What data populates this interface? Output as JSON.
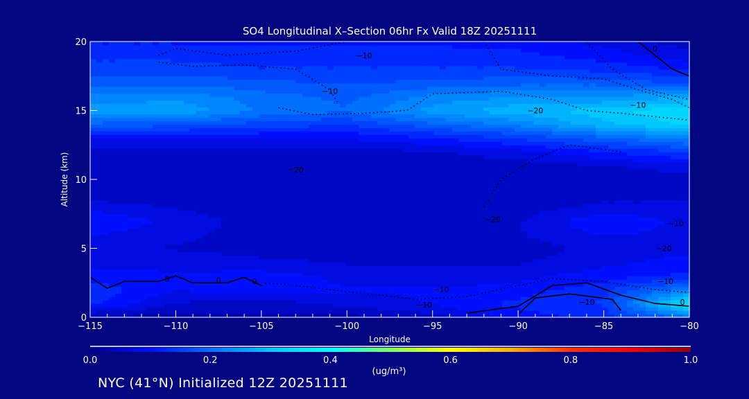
{
  "chart_data": {
    "type": "heatmap",
    "title": "SO4 Longitudinal X–Section 06hr  Fx Valid 18Z 20251111",
    "xlabel": "Longitude",
    "ylabel": "Altitude (km)",
    "xlim": [
      -115,
      -80
    ],
    "ylim": [
      0,
      20
    ],
    "xticks": [
      -115,
      -110,
      -105,
      -100,
      -95,
      -90,
      -85,
      -80
    ],
    "xtick_labels": [
      "−115",
      "−110",
      "−105",
      "−100",
      "−95",
      "−90",
      "−85",
      "−80"
    ],
    "yticks": [
      0,
      5,
      10,
      15,
      20
    ],
    "ytick_labels": [
      "0",
      "5",
      "10",
      "15",
      "20"
    ],
    "grid": false,
    "lon": [
      -115,
      -110,
      -105,
      -100,
      -95,
      -90,
      -85,
      -80
    ],
    "alt": [
      0,
      1,
      2,
      3,
      4,
      5,
      6,
      7,
      8,
      9,
      10,
      11,
      12,
      13,
      14,
      15,
      16,
      17,
      18,
      19,
      20
    ],
    "values": [
      [
        0.03,
        0.03,
        0.03,
        0.03,
        0.05,
        0.1,
        0.12,
        0.2
      ],
      [
        0.12,
        0.06,
        0.05,
        0.07,
        0.09,
        0.12,
        0.14,
        0.35
      ],
      [
        0.13,
        0.09,
        0.1,
        0.09,
        0.09,
        0.1,
        0.13,
        0.22
      ],
      [
        0.1,
        0.09,
        0.1,
        0.08,
        0.07,
        0.08,
        0.1,
        0.12
      ],
      [
        0.08,
        0.08,
        0.07,
        0.06,
        0.06,
        0.06,
        0.08,
        0.1
      ],
      [
        0.07,
        0.06,
        0.05,
        0.05,
        0.05,
        0.05,
        0.07,
        0.08
      ],
      [
        0.09,
        0.07,
        0.05,
        0.05,
        0.05,
        0.06,
        0.09,
        0.08
      ],
      [
        0.11,
        0.08,
        0.05,
        0.04,
        0.05,
        0.06,
        0.11,
        0.08
      ],
      [
        0.08,
        0.06,
        0.04,
        0.04,
        0.04,
        0.05,
        0.07,
        0.07
      ],
      [
        0.04,
        0.04,
        0.04,
        0.04,
        0.04,
        0.04,
        0.05,
        0.05
      ],
      [
        0.04,
        0.04,
        0.04,
        0.04,
        0.04,
        0.04,
        0.04,
        0.05
      ],
      [
        0.04,
        0.04,
        0.04,
        0.04,
        0.04,
        0.05,
        0.06,
        0.08
      ],
      [
        0.05,
        0.05,
        0.05,
        0.05,
        0.06,
        0.08,
        0.11,
        0.14
      ],
      [
        0.09,
        0.09,
        0.09,
        0.09,
        0.11,
        0.14,
        0.18,
        0.22
      ],
      [
        0.18,
        0.17,
        0.15,
        0.14,
        0.18,
        0.22,
        0.28,
        0.32
      ],
      [
        0.25,
        0.26,
        0.21,
        0.19,
        0.25,
        0.28,
        0.3,
        0.34
      ],
      [
        0.22,
        0.23,
        0.2,
        0.18,
        0.22,
        0.24,
        0.24,
        0.26
      ],
      [
        0.18,
        0.18,
        0.17,
        0.16,
        0.17,
        0.18,
        0.18,
        0.16
      ],
      [
        0.15,
        0.15,
        0.14,
        0.14,
        0.14,
        0.14,
        0.13,
        0.11
      ],
      [
        0.13,
        0.13,
        0.12,
        0.12,
        0.12,
        0.12,
        0.1,
        0.07
      ],
      [
        0.11,
        0.11,
        0.11,
        0.11,
        0.11,
        0.1,
        0.08,
        0.05
      ]
    ],
    "colorbar": {
      "label": "(ug/m³)",
      "ticks": [
        "0.0",
        "0.2",
        "0.4",
        "0.6",
        "0.8",
        "1.0"
      ],
      "range": [
        0,
        1
      ],
      "stops": [
        {
          "v": 0.0,
          "c": "#000088"
        },
        {
          "v": 0.1,
          "c": "#0010ff"
        },
        {
          "v": 0.2,
          "c": "#0070ff"
        },
        {
          "v": 0.3,
          "c": "#00c8ff"
        },
        {
          "v": 0.4,
          "c": "#00ffff"
        },
        {
          "v": 0.5,
          "c": "#80ff60"
        },
        {
          "v": 0.6,
          "c": "#ffff00"
        },
        {
          "v": 0.7,
          "c": "#ffb000"
        },
        {
          "v": 0.8,
          "c": "#ff3000"
        },
        {
          "v": 0.9,
          "c": "#ff0000"
        },
        {
          "v": 1.0,
          "c": "#900000"
        }
      ]
    },
    "contours": [
      {
        "style": "dotted",
        "points": [
          [
            -111,
            19
          ],
          [
            -110,
            19.5
          ],
          [
            -107,
            19
          ],
          [
            -103,
            19.3
          ],
          [
            -100,
            20
          ]
        ]
      },
      {
        "style": "dotted",
        "points": [
          [
            -111,
            18.5
          ],
          [
            -109,
            18.2
          ],
          [
            -106,
            18.3
          ],
          [
            -103,
            18.0
          ],
          [
            -101,
            16.5
          ],
          [
            -100.5,
            15.5
          ]
        ]
      },
      {
        "style": "dotted",
        "points": [
          [
            -104,
            15.2
          ],
          [
            -102,
            14.7
          ],
          [
            -99,
            14.8
          ],
          [
            -96.5,
            15.0
          ],
          [
            -95,
            16.2
          ],
          [
            -91,
            16.4
          ],
          [
            -88,
            15.8
          ],
          [
            -86,
            15.0
          ],
          [
            -84,
            14.8
          ],
          [
            -80,
            14.3
          ]
        ]
      },
      {
        "style": "dotted",
        "points": [
          [
            -92,
            20
          ],
          [
            -91,
            18
          ],
          [
            -88,
            17.5
          ],
          [
            -85,
            17.3
          ],
          [
            -83,
            16.5
          ],
          [
            -81,
            15.8
          ],
          [
            -80,
            15.2
          ]
        ]
      },
      {
        "style": "dotted",
        "points": [
          [
            -86,
            20
          ],
          [
            -84.5,
            18
          ],
          [
            -82.5,
            16.5
          ],
          [
            -80,
            15.8
          ]
        ]
      },
      {
        "style": "solid",
        "points": [
          [
            -83,
            20
          ],
          [
            -82,
            19
          ],
          [
            -81,
            18
          ],
          [
            -80,
            17.5
          ]
        ]
      },
      {
        "style": "solid",
        "points": [
          [
            -115,
            2.9
          ],
          [
            -114,
            2.1
          ],
          [
            -113,
            2.6
          ],
          [
            -111,
            2.6
          ],
          [
            -110,
            3.0
          ],
          [
            -109,
            2.5
          ],
          [
            -107,
            2.5
          ],
          [
            -106,
            2.9
          ],
          [
            -105,
            2.3
          ]
        ]
      },
      {
        "style": "dotted",
        "points": [
          [
            -105,
            2.5
          ],
          [
            -103,
            2.3
          ],
          [
            -101,
            2.0
          ],
          [
            -98,
            1.6
          ],
          [
            -96,
            1.3
          ],
          [
            -93,
            1.5
          ],
          [
            -90,
            2.3
          ],
          [
            -88,
            2.8
          ],
          [
            -85,
            2.6
          ],
          [
            -82,
            2.0
          ],
          [
            -80,
            1.8
          ]
        ]
      },
      {
        "style": "solid",
        "points": [
          [
            -93,
            0.3
          ],
          [
            -90,
            0.8
          ],
          [
            -88,
            2.3
          ],
          [
            -86,
            2.5
          ],
          [
            -84,
            1.6
          ],
          [
            -82,
            1.0
          ],
          [
            -80,
            0.8
          ]
        ]
      },
      {
        "style": "solid",
        "points": [
          [
            -90,
            0.2
          ],
          [
            -89,
            1.4
          ],
          [
            -87,
            1.7
          ],
          [
            -84.5,
            1.3
          ],
          [
            -84,
            0.5
          ]
        ]
      },
      {
        "style": "dotted",
        "points": [
          [
            -92,
            8
          ],
          [
            -91,
            10
          ],
          [
            -89,
            11.5
          ],
          [
            -87,
            12.5
          ],
          [
            -84,
            12
          ]
        ]
      }
    ],
    "contour_labels": [
      {
        "text": "−10",
        "lon": -99,
        "alt": 18.8
      },
      {
        "text": "−10",
        "lon": -101,
        "alt": 16.2
      },
      {
        "text": "−20",
        "lon": -89,
        "alt": 14.8
      },
      {
        "text": "−10",
        "lon": -83,
        "alt": 15.2
      },
      {
        "text": "0",
        "lon": -82,
        "alt": 19.3
      },
      {
        "text": "−20",
        "lon": -103,
        "alt": 10.5
      },
      {
        "text": "−20",
        "lon": -91.5,
        "alt": 6.9
      },
      {
        "text": "−20",
        "lon": -81.5,
        "alt": 4.8
      },
      {
        "text": "−10",
        "lon": -80.8,
        "alt": 6.6
      },
      {
        "text": "−10",
        "lon": -81.4,
        "alt": 2.4
      },
      {
        "text": "0",
        "lon": -80.4,
        "alt": 0.9
      },
      {
        "text": "0",
        "lon": -110.5,
        "alt": 2.6
      },
      {
        "text": "0",
        "lon": -107.5,
        "alt": 2.5
      },
      {
        "text": "0",
        "lon": -105.4,
        "alt": 2.4
      },
      {
        "text": "−10",
        "lon": -94.5,
        "alt": 1.8
      },
      {
        "text": "−10",
        "lon": -95.5,
        "alt": 0.7
      },
      {
        "text": "−10",
        "lon": -86,
        "alt": 0.9
      }
    ]
  },
  "footer": "NYC (41°N) Initialized 12Z 20251111"
}
